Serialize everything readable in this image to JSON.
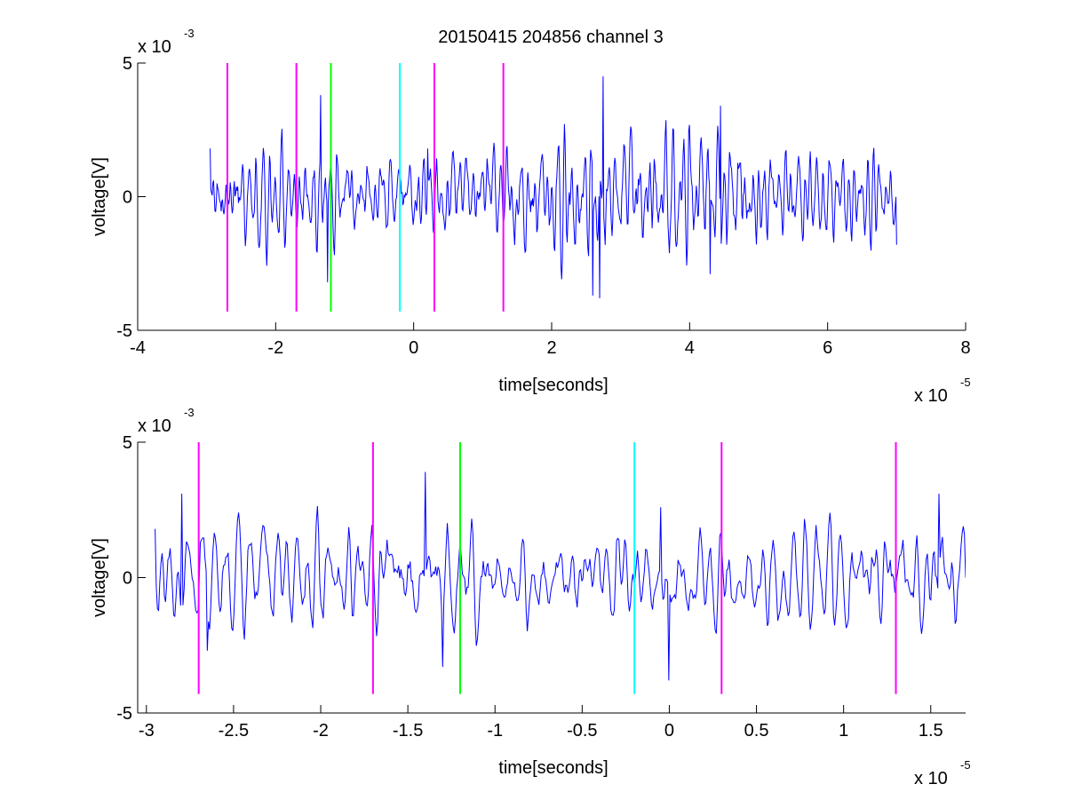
{
  "figure": {
    "title": "20150415 204856 channel 3",
    "background": "#ffffff"
  },
  "colors": {
    "signal": "#0000ff",
    "magenta": "#ff00ff",
    "green": "#00ff00",
    "cyan": "#00ffff",
    "axis": "#000000"
  },
  "chart_data": [
    {
      "type": "line",
      "title": "20150415 204856 channel 3",
      "xlabel": "time[seconds]",
      "ylabel": "voltage[V]",
      "x_multiplier": "x 10",
      "x_exponent": "-5",
      "y_multiplier": "x 10",
      "y_exponent": "-3",
      "xlim": [
        -4,
        8
      ],
      "ylim": [
        -5,
        5
      ],
      "xticks": [
        -4,
        -2,
        0,
        2,
        4,
        6,
        8
      ],
      "xtick_labels": [
        "-4",
        "-2",
        "0",
        "2",
        "4",
        "6",
        "8"
      ],
      "yticks": [
        -5,
        0,
        5
      ],
      "ytick_labels": [
        "-5",
        "0",
        "5"
      ],
      "grid": false,
      "legend": "none",
      "series": [
        {
          "x_range": [
            -2.95,
            7.0
          ],
          "samples": 995,
          "seed": 20150415,
          "amplitude": 1.0,
          "envelope": [
            [
              -2.95,
              1.0
            ],
            [
              0.0,
              0.8
            ],
            [
              2.0,
              1.1
            ],
            [
              4.0,
              1.45
            ],
            [
              5.5,
              0.85
            ],
            [
              7.0,
              0.8
            ]
          ],
          "peaks": [
            [
              -2.95,
              1.8
            ],
            [
              -2.7,
              -1.4
            ],
            [
              -1.35,
              3.8
            ],
            [
              -1.25,
              -3.2
            ],
            [
              0.2,
              1.8
            ],
            [
              2.75,
              4.5
            ],
            [
              2.6,
              -3.7
            ],
            [
              2.7,
              -3.8
            ],
            [
              4.3,
              -2.9
            ],
            [
              4.45,
              3.4
            ],
            [
              7.0,
              -1.8
            ]
          ]
        }
      ],
      "markers": [
        {
          "x": -2.7,
          "ylim": [
            -4.3,
            5
          ],
          "color": "#ff00ff"
        },
        {
          "x": -1.7,
          "ylim": [
            -4.3,
            5
          ],
          "color": "#ff00ff"
        },
        {
          "x": -1.2,
          "ylim": [
            -4.3,
            5
          ],
          "color": "#00ff00"
        },
        {
          "x": -0.2,
          "ylim": [
            -4.3,
            5
          ],
          "color": "#00ffff"
        },
        {
          "x": 0.3,
          "ylim": [
            -4.3,
            5
          ],
          "color": "#ff00ff"
        },
        {
          "x": 1.3,
          "ylim": [
            -4.3,
            5
          ],
          "color": "#ff00ff"
        }
      ]
    },
    {
      "type": "line",
      "title": "",
      "xlabel": "time[seconds]",
      "ylabel": "voltage[V]",
      "x_multiplier": "x 10",
      "x_exponent": "-5",
      "y_multiplier": "x 10",
      "y_exponent": "-3",
      "xlim": [
        -3.05,
        1.7
      ],
      "ylim": [
        -5,
        5
      ],
      "xticks": [
        -3,
        -2.5,
        -2,
        -1.5,
        -1,
        -0.5,
        0,
        0.5,
        1,
        1.5
      ],
      "xtick_labels": [
        "-3",
        "-2.5",
        "-2",
        "-1.5",
        "-1",
        "-0.5",
        "0",
        "0.5",
        "1",
        "1.5"
      ],
      "yticks": [
        -5,
        0,
        5
      ],
      "ytick_labels": [
        "-5",
        "0",
        "5"
      ],
      "grid": false,
      "legend": "none",
      "series": [
        {
          "x_range": [
            -2.95,
            1.7
          ],
          "samples": 700,
          "seed": 20150416,
          "amplitude": 1.0,
          "envelope": [
            [
              -2.95,
              1.0
            ],
            [
              -1.5,
              1.1
            ],
            [
              0.0,
              0.9
            ],
            [
              1.7,
              1.1
            ]
          ],
          "peaks": [
            [
              -2.95,
              1.8
            ],
            [
              -2.8,
              3.1
            ],
            [
              -2.65,
              -2.7
            ],
            [
              -1.4,
              3.9
            ],
            [
              -1.3,
              -3.3
            ],
            [
              -0.05,
              2.6
            ],
            [
              0.0,
              -3.8
            ],
            [
              1.55,
              3.1
            ],
            [
              1.7,
              0.0
            ]
          ]
        }
      ],
      "markers": [
        {
          "x": -2.7,
          "ylim": [
            -4.3,
            5
          ],
          "color": "#ff00ff"
        },
        {
          "x": -1.7,
          "ylim": [
            -4.3,
            5
          ],
          "color": "#ff00ff"
        },
        {
          "x": -1.2,
          "ylim": [
            -4.3,
            5
          ],
          "color": "#00ff00"
        },
        {
          "x": -0.2,
          "ylim": [
            -4.3,
            5
          ],
          "color": "#00ffff"
        },
        {
          "x": 0.3,
          "ylim": [
            -4.3,
            5
          ],
          "color": "#ff00ff"
        },
        {
          "x": 1.3,
          "ylim": [
            -4.3,
            5
          ],
          "color": "#ff00ff"
        }
      ]
    }
  ]
}
